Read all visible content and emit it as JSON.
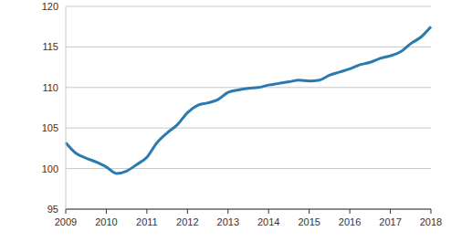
{
  "chart_data": {
    "type": "line",
    "categories": [
      "2009",
      null,
      null,
      null,
      "2010",
      null,
      null,
      null,
      "2011",
      null,
      null,
      null,
      "2012",
      null,
      null,
      null,
      "2013",
      null,
      null,
      null,
      "2014",
      null,
      null,
      null,
      "2015",
      null,
      null,
      null,
      "2016",
      null,
      null,
      null,
      "2017",
      null,
      null,
      null,
      "2018"
    ],
    "values": [
      103.2,
      101.9,
      101.3,
      100.8,
      100.2,
      99.4,
      99.7,
      100.5,
      101.4,
      103.2,
      104.4,
      105.4,
      106.9,
      107.8,
      108.1,
      108.5,
      109.4,
      109.7,
      109.9,
      110.0,
      110.3,
      110.5,
      110.7,
      110.9,
      110.8,
      110.9,
      111.5,
      111.9,
      112.3,
      112.8,
      113.1,
      113.6,
      113.9,
      114.4,
      115.4,
      116.2,
      117.5
    ],
    "color": "#2a7ab0",
    "ylim": [
      95,
      120
    ],
    "yticks": [
      95,
      100,
      105,
      110,
      115,
      120
    ],
    "grid": true
  }
}
